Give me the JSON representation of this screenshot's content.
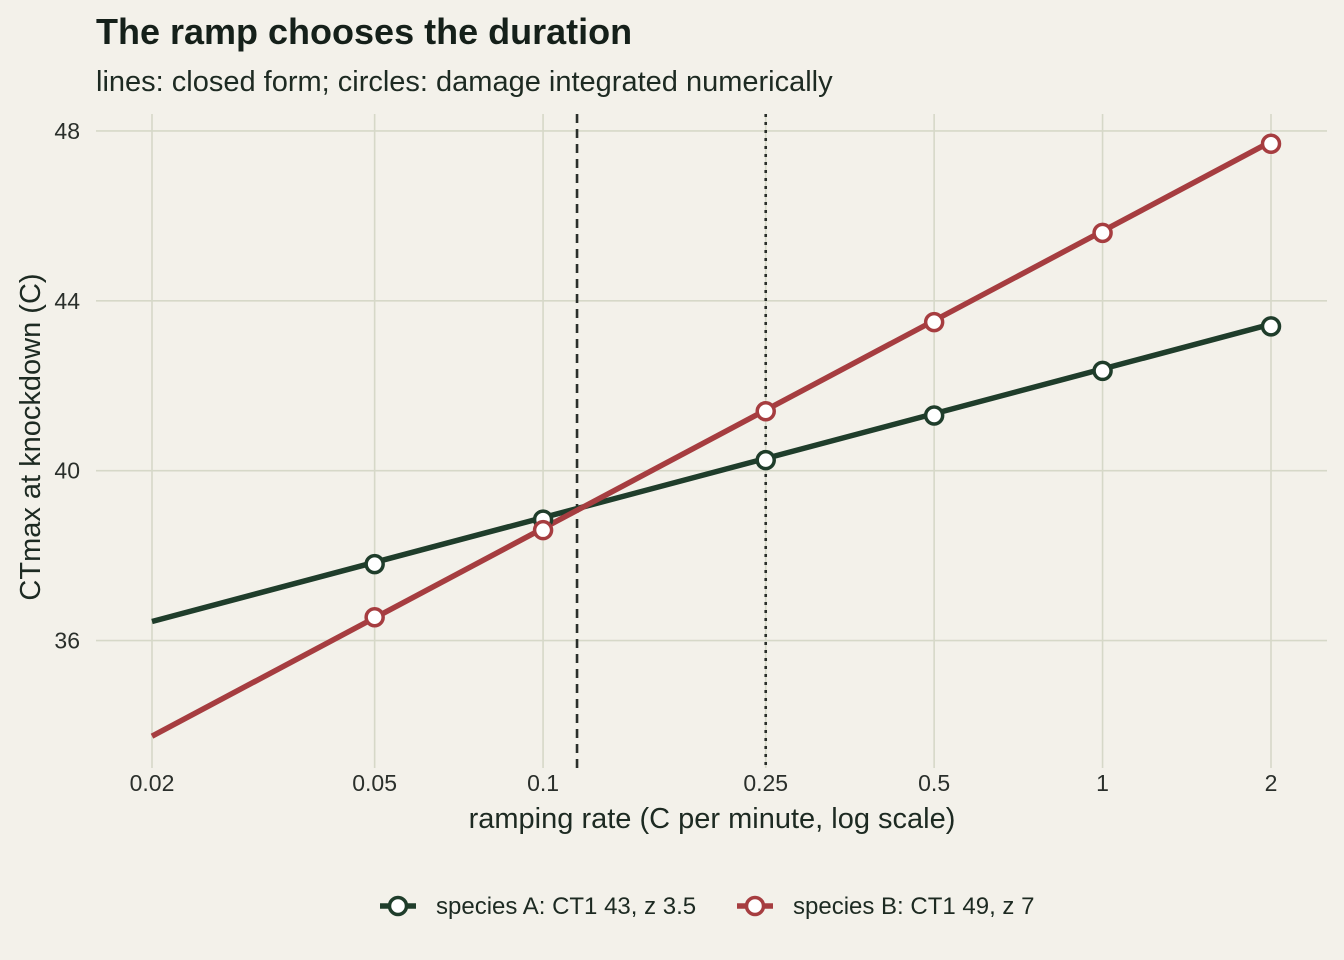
{
  "chart_data": {
    "type": "line",
    "title": "The ramp chooses the duration",
    "subtitle": "lines: closed form; circles: damage integrated numerically",
    "xlabel": "ramping rate (C per minute, log scale)",
    "ylabel": "CTmax at knockdown (C)",
    "x_scale": "log",
    "xlim": [
      0.02,
      2
    ],
    "ylim": [
      33,
      48.4
    ],
    "x_ticks": [
      0.02,
      0.05,
      0.1,
      0.25,
      0.5,
      1,
      2
    ],
    "x_tick_labels": [
      "0.02",
      "0.05",
      "0.1",
      "0.25",
      "0.5",
      "1",
      "2"
    ],
    "y_ticks": [
      36,
      40,
      44,
      48
    ],
    "y_tick_labels": [
      "36",
      "40",
      "44",
      "48"
    ],
    "grid": true,
    "legend_position": "bottom",
    "reference_lines": [
      {
        "x": 0.115,
        "style": "dashed"
      },
      {
        "x": 0.25,
        "style": "dotted"
      }
    ],
    "series": [
      {
        "name": "species A: CT1 43, z 3.5",
        "color": "#1f3d2b",
        "line_x": [
          0.02,
          2
        ],
        "line_y": [
          36.45,
          43.45
        ],
        "points_x": [
          0.05,
          0.1,
          0.25,
          0.5,
          1,
          2
        ],
        "points_y": [
          37.8,
          38.85,
          40.25,
          41.3,
          42.35,
          43.4
        ]
      },
      {
        "name": "species B: CT1 49, z 7",
        "color": "#a63d40",
        "line_x": [
          0.02,
          2
        ],
        "line_y": [
          33.75,
          47.75
        ],
        "points_x": [
          0.05,
          0.1,
          0.25,
          0.5,
          1,
          2
        ],
        "points_y": [
          36.55,
          38.6,
          41.4,
          43.5,
          45.6,
          47.7
        ]
      }
    ]
  }
}
